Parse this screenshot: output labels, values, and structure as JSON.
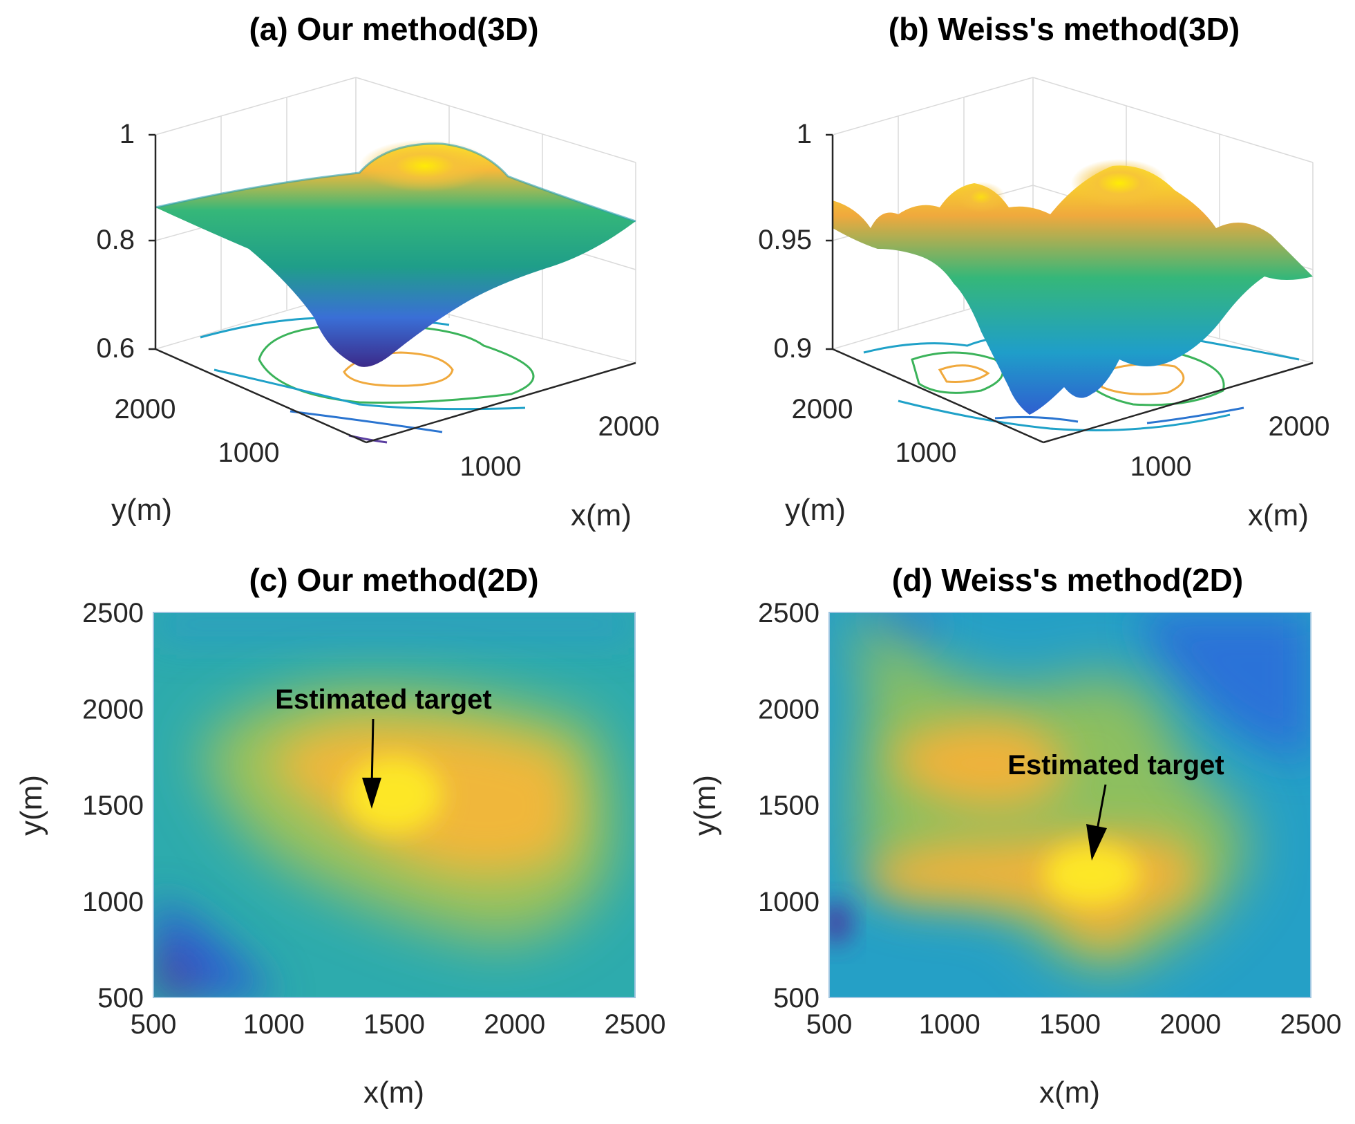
{
  "chart_data": [
    {
      "panel": "a",
      "type": "surface3d",
      "title": "(a) Our method(3D)",
      "xlabel": "x(m)",
      "ylabel": "y(m)",
      "zlim": [
        0.6,
        1.0
      ],
      "ztick_labels": [
        "1",
        "0.8",
        "0.6"
      ],
      "xtick_labels": [
        "2000",
        "1000"
      ],
      "ytick_labels": [
        "2000",
        "1000"
      ],
      "peak": {
        "x": 1400,
        "y": 1500,
        "z": 0.95
      },
      "plateau_z": 0.85,
      "min_z": 0.6,
      "contours": true
    },
    {
      "panel": "b",
      "type": "surface3d",
      "title": "(b) Weiss's method(3D)",
      "xlabel": "x(m)",
      "ylabel": "y(m)",
      "zlim": [
        0.9,
        1.0
      ],
      "ztick_labels": [
        "1",
        "0.95",
        "0.9"
      ],
      "xtick_labels": [
        "2000",
        "1000"
      ],
      "ytick_labels": [
        "2000",
        "1000"
      ],
      "peak": {
        "x": 1600,
        "y": 1150,
        "z": 0.985
      },
      "min_z": 0.9,
      "contours": true
    },
    {
      "panel": "c",
      "type": "heatmap",
      "title": "(c) Our method(2D)",
      "xlabel": "x(m)",
      "ylabel": "y(m)",
      "xlim": [
        500,
        2500
      ],
      "ylim": [
        500,
        2500
      ],
      "xticks": [
        500,
        1000,
        1500,
        2000,
        2500
      ],
      "yticks": [
        500,
        1000,
        1500,
        2000,
        2500
      ],
      "annotation": {
        "text": "Estimated target",
        "x": 1400,
        "y": 1500
      }
    },
    {
      "panel": "d",
      "type": "heatmap",
      "title": "(d) Weiss's method(2D)",
      "xlabel": "x(m)",
      "ylabel": "y(m)",
      "xlim": [
        500,
        2500
      ],
      "ylim": [
        500,
        2500
      ],
      "xticks": [
        500,
        1000,
        1500,
        2000,
        2500
      ],
      "yticks": [
        500,
        1000,
        1500,
        2000,
        2500
      ],
      "annotation": {
        "text": "Estimated target",
        "x": 1600,
        "y": 1150
      }
    }
  ]
}
